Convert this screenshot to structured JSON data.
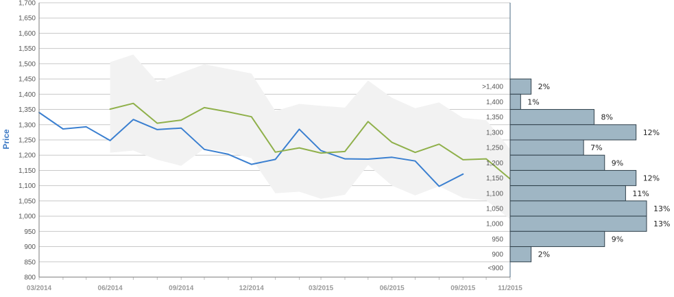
{
  "chart_data": {
    "type": "line",
    "ylabel": "Price",
    "ylim": [
      800,
      1700
    ],
    "y_ticks": [
      800,
      850,
      900,
      950,
      1000,
      1050,
      1100,
      1150,
      1200,
      1250,
      1300,
      1350,
      1400,
      1450,
      1500,
      1550,
      1600,
      1650,
      1700
    ],
    "y_tick_labels": [
      "800",
      "850",
      "900",
      "950",
      "1,000",
      "1,050",
      "1,100",
      "1,150",
      "1,200",
      "1,250",
      "1,300",
      "1,350",
      "1,400",
      "1,450",
      "1,500",
      "1,550",
      "1,600",
      "1,650",
      "1,700"
    ],
    "x_ticks": [
      "2014-03",
      "2014-06",
      "2014-09",
      "2014-12",
      "2015-03",
      "2015-06",
      "2015-09",
      "2015-11"
    ],
    "x_tick_labels": [
      "03/2014",
      "06/2014",
      "09/2014",
      "12/2014",
      "03/2015",
      "06/2015",
      "09/2015",
      "11/2015"
    ],
    "grid": true,
    "series": [
      {
        "color": "#3a7fd0",
        "points": [
          [
            "2014-03",
            1340
          ],
          [
            "2014-04",
            1286
          ],
          [
            "2014-05",
            1293
          ],
          [
            "2014-06",
            1248
          ],
          [
            "2014-07",
            1317
          ],
          [
            "2014-08",
            1284
          ],
          [
            "2014-09",
            1289
          ],
          [
            "2014-10",
            1219
          ],
          [
            "2014-11",
            1203
          ],
          [
            "2014-12",
            1170
          ],
          [
            "2015-01",
            1186
          ],
          [
            "2015-02",
            1285
          ],
          [
            "2015-03",
            1215
          ],
          [
            "2015-04",
            1188
          ],
          [
            "2015-05",
            1187
          ],
          [
            "2015-06",
            1193
          ],
          [
            "2015-07",
            1181
          ],
          [
            "2015-08",
            1098
          ],
          [
            "2015-09",
            1138
          ]
        ]
      },
      {
        "color": "#8fb04a",
        "points": [
          [
            "2014-06",
            1351
          ],
          [
            "2014-07",
            1370
          ],
          [
            "2014-08",
            1305
          ],
          [
            "2014-09",
            1315
          ],
          [
            "2014-10",
            1356
          ],
          [
            "2014-11",
            1342
          ],
          [
            "2014-12",
            1326
          ],
          [
            "2015-01",
            1210
          ],
          [
            "2015-02",
            1224
          ],
          [
            "2015-03",
            1207
          ],
          [
            "2015-04",
            1212
          ],
          [
            "2015-05",
            1310
          ],
          [
            "2015-06",
            1242
          ],
          [
            "2015-07",
            1209
          ],
          [
            "2015-08",
            1236
          ],
          [
            "2015-09",
            1185
          ],
          [
            "2015-10",
            1188
          ],
          [
            "2015-11",
            1122
          ],
          [
            "2015-11-20",
            1120
          ]
        ]
      }
    ],
    "range_band": {
      "color": "#f2f2f2",
      "x": [
        "2014-06",
        "2014-07",
        "2014-08",
        "2014-09",
        "2014-10",
        "2014-11",
        "2014-12",
        "2015-01",
        "2015-02",
        "2015-03",
        "2015-04",
        "2015-05",
        "2015-06",
        "2015-07",
        "2015-08",
        "2015-09",
        "2015-10",
        "2015-11",
        "2015-11-20"
      ],
      "upper": [
        1505,
        1530,
        1440,
        1470,
        1498,
        1483,
        1468,
        1345,
        1368,
        1362,
        1356,
        1445,
        1388,
        1354,
        1373,
        1322,
        1315,
        1220,
        1120
      ],
      "lower": [
        1208,
        1215,
        1185,
        1165,
        1222,
        1210,
        1190,
        1075,
        1080,
        1057,
        1070,
        1168,
        1100,
        1068,
        1098,
        1060,
        1052,
        990,
        975
      ]
    },
    "histogram": {
      "orientation": "horizontal",
      "color": "#9fb6c4",
      "bins": [
        {
          "label": ">1,400",
          "low": 1400,
          "high": 1450,
          "percent": 2,
          "percent_label": "2%"
        },
        {
          "label": "1,400",
          "low": 1350,
          "high": 1400,
          "percent": 1,
          "percent_label": "1%"
        },
        {
          "label": "1,350",
          "low": 1300,
          "high": 1350,
          "percent": 8,
          "percent_label": "8%"
        },
        {
          "label": "1,300",
          "low": 1250,
          "high": 1300,
          "percent": 12,
          "percent_label": "12%"
        },
        {
          "label": "1,250",
          "low": 1200,
          "high": 1250,
          "percent": 7,
          "percent_label": "7%"
        },
        {
          "label": "1,200",
          "low": 1150,
          "high": 1200,
          "percent": 9,
          "percent_label": "9%"
        },
        {
          "label": "1,150",
          "low": 1100,
          "high": 1150,
          "percent": 12,
          "percent_label": "12%"
        },
        {
          "label": "1,100",
          "low": 1050,
          "high": 1100,
          "percent": 11,
          "percent_label": "11%"
        },
        {
          "label": "1,050",
          "low": 1000,
          "high": 1050,
          "percent": 13,
          "percent_label": "13%"
        },
        {
          "label": "1,000",
          "low": 950,
          "high": 1000,
          "percent": 13,
          "percent_label": "13%"
        },
        {
          "label": "950",
          "low": 900,
          "high": 950,
          "percent": 9,
          "percent_label": "9%"
        },
        {
          "label": "900",
          "low": 850,
          "high": 900,
          "percent": 2,
          "percent_label": "2%"
        },
        {
          "label": "<900",
          "low": 850,
          "high": 850,
          "percent": 0,
          "percent_label": ""
        }
      ]
    }
  }
}
